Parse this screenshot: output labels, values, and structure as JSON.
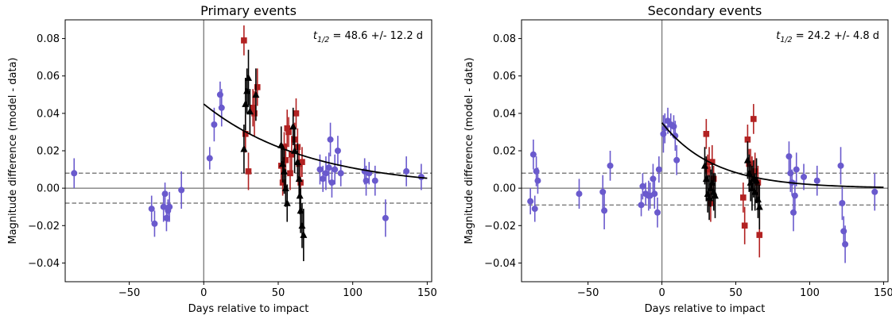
{
  "chart_data": [
    {
      "type": "scatter",
      "title": "Primary events",
      "xlabel": "Days relative to impact",
      "ylabel": "Magnitude difference (model - data)",
      "xlim": [
        -93,
        153
      ],
      "ylim": [
        -0.05,
        0.09
      ],
      "xticks": [
        -50,
        0,
        50,
        100,
        150
      ],
      "yticks": [
        -0.04,
        -0.02,
        0.0,
        0.02,
        0.04,
        0.06,
        0.08
      ],
      "xtick_labels": [
        "−50",
        "0",
        "50",
        "100",
        "150"
      ],
      "ytick_labels": [
        "−0.04",
        "−0.02",
        "0.00",
        "0.02",
        "0.04",
        "0.06",
        "0.08"
      ],
      "annotation": {
        "var": "t",
        "sub": "1/2",
        "text": " = 48.6 +/- 12.2 d"
      },
      "zero_line": 0.0,
      "dashed_lines": [
        0.008,
        -0.008
      ],
      "impact_line_x": 0,
      "fit_curve": {
        "A": 0.045,
        "half_life": 48.6,
        "x_start": 0,
        "x_end": 150
      },
      "series": [
        {
          "marker": "circle",
          "color": "#6a5acd",
          "points": [
            [
              -87,
              0.008,
              0.008
            ],
            [
              -35,
              -0.011,
              0.007
            ],
            [
              -33,
              -0.019,
              0.007
            ],
            [
              -27,
              -0.01,
              0.008
            ],
            [
              -26,
              -0.003,
              0.006
            ],
            [
              -25,
              -0.016,
              0.007
            ],
            [
              -24,
              -0.012,
              0.006
            ],
            [
              -23,
              -0.01,
              0.008
            ],
            [
              -15,
              -0.001,
              0.01
            ],
            [
              4,
              0.016,
              0.006
            ],
            [
              7,
              0.034,
              0.009
            ],
            [
              11,
              0.05,
              0.007
            ],
            [
              12,
              0.043,
              0.01
            ],
            [
              78,
              0.01,
              0.008
            ],
            [
              80,
              0.005,
              0.007
            ],
            [
              82,
              0.008,
              0.009
            ],
            [
              84,
              0.011,
              0.008
            ],
            [
              85,
              0.026,
              0.009
            ],
            [
              86,
              0.003,
              0.008
            ],
            [
              88,
              0.01,
              0.008
            ],
            [
              90,
              0.02,
              0.008
            ],
            [
              92,
              0.008,
              0.007
            ],
            [
              108,
              0.009,
              0.007
            ],
            [
              109,
              0.004,
              0.008
            ],
            [
              111,
              0.008,
              0.006
            ],
            [
              115,
              0.004,
              0.008
            ],
            [
              122,
              -0.016,
              0.01
            ],
            [
              136,
              0.009,
              0.008
            ],
            [
              146,
              0.006,
              0.007
            ]
          ]
        },
        {
          "marker": "square",
          "color": "#b22222",
          "points": [
            [
              27,
              0.079,
              0.008
            ],
            [
              28,
              0.029,
              0.01
            ],
            [
              30,
              0.009,
              0.01
            ],
            [
              33,
              0.043,
              0.01
            ],
            [
              34,
              0.04,
              0.012
            ],
            [
              36,
              0.054,
              0.01
            ],
            [
              52,
              0.012,
              0.008
            ],
            [
              53,
              0.003,
              0.007
            ],
            [
              54,
              0.022,
              0.008
            ],
            [
              55,
              0.015,
              0.009
            ],
            [
              56,
              0.032,
              0.01
            ],
            [
              57,
              0.03,
              0.008
            ],
            [
              58,
              0.008,
              0.009
            ],
            [
              59,
              0.018,
              0.01
            ],
            [
              61,
              0.026,
              0.009
            ],
            [
              62,
              0.04,
              0.008
            ],
            [
              63,
              0.022,
              0.01
            ],
            [
              64,
              0.013,
              0.008
            ],
            [
              65,
              0.003,
              0.009
            ],
            [
              66,
              0.014,
              0.008
            ]
          ]
        },
        {
          "marker": "triangle",
          "color": "#000000",
          "points": [
            [
              27,
              0.021,
              0.013
            ],
            [
              28,
              0.045,
              0.014
            ],
            [
              29,
              0.052,
              0.012
            ],
            [
              30,
              0.059,
              0.015
            ],
            [
              31,
              0.041,
              0.012
            ],
            [
              35,
              0.05,
              0.014
            ],
            [
              52,
              0.023,
              0.01
            ],
            [
              53,
              0.013,
              0.01
            ],
            [
              54,
              0.009,
              0.012
            ],
            [
              55,
              0.0,
              0.01
            ],
            [
              56,
              -0.008,
              0.01
            ],
            [
              60,
              0.033,
              0.01
            ],
            [
              61,
              0.02,
              0.012
            ],
            [
              63,
              0.014,
              0.01
            ],
            [
              64,
              0.005,
              0.01
            ],
            [
              64.5,
              -0.004,
              0.01
            ],
            [
              65,
              -0.012,
              0.012
            ],
            [
              66,
              -0.02,
              0.012
            ],
            [
              67,
              -0.025,
              0.014
            ]
          ]
        }
      ]
    },
    {
      "type": "scatter",
      "title": "Secondary events",
      "xlabel": "Days relative to impact",
      "ylabel": "Magnitude difference (model - data)",
      "xlim": [
        -95,
        153
      ],
      "ylim": [
        -0.05,
        0.09
      ],
      "xticks": [
        -50,
        0,
        50,
        100,
        150
      ],
      "yticks": [
        -0.04,
        -0.02,
        0.0,
        0.02,
        0.04,
        0.06,
        0.08
      ],
      "xtick_labels": [
        "−50",
        "0",
        "50",
        "100",
        "150"
      ],
      "ytick_labels": [
        "−0.04",
        "−0.02",
        "0.00",
        "0.02",
        "0.04",
        "0.06",
        "0.08"
      ],
      "annotation": {
        "var": "t",
        "sub": "1/2",
        "text": " = 24.2 +/- 4.8 d"
      },
      "zero_line": 0.0,
      "dashed_lines": [
        0.008,
        -0.009
      ],
      "impact_line_x": 0,
      "fit_curve": {
        "A": 0.035,
        "half_life": 24.2,
        "x_start": 0,
        "x_end": 150
      },
      "series": [
        {
          "marker": "circle",
          "color": "#6a5acd",
          "points": [
            [
              -89,
              -0.007,
              0.007
            ],
            [
              -87,
              0.018,
              0.008
            ],
            [
              -86,
              -0.011,
              0.007
            ],
            [
              -85,
              0.009,
              0.008
            ],
            [
              -84,
              0.004,
              0.007
            ],
            [
              -56,
              -0.003,
              0.008
            ],
            [
              -40,
              -0.002,
              0.009
            ],
            [
              -39,
              -0.012,
              0.01
            ],
            [
              -35,
              0.012,
              0.008
            ],
            [
              -14,
              -0.009,
              0.006
            ],
            [
              -13,
              0.001,
              0.007
            ],
            [
              -11,
              -0.003,
              0.006
            ],
            [
              -9,
              -0.004,
              0.008
            ],
            [
              -8,
              -0.004,
              0.007
            ],
            [
              -6,
              0.005,
              0.008
            ],
            [
              -5,
              -0.003,
              0.008
            ],
            [
              -3,
              -0.013,
              0.008
            ],
            [
              -2,
              0.01,
              0.007
            ],
            [
              1,
              0.029,
              0.01
            ],
            [
              2,
              0.032,
              0.008
            ],
            [
              4,
              0.036,
              0.007
            ],
            [
              6,
              0.034,
              0.006
            ],
            [
              8,
              0.033,
              0.006
            ],
            [
              9,
              0.028,
              0.008
            ],
            [
              10,
              0.015,
              0.008
            ],
            [
              86,
              0.017,
              0.008
            ],
            [
              87,
              0.008,
              0.01
            ],
            [
              88,
              0.003,
              0.007
            ],
            [
              89,
              -0.013,
              0.01
            ],
            [
              90,
              -0.004,
              0.008
            ],
            [
              91,
              0.01,
              0.009
            ],
            [
              96,
              0.006,
              0.007
            ],
            [
              105,
              0.004,
              0.008
            ],
            [
              121,
              0.012,
              0.01
            ],
            [
              122,
              -0.008,
              0.009
            ],
            [
              123,
              -0.023,
              0.008
            ],
            [
              124,
              -0.03,
              0.01
            ],
            [
              144,
              -0.002,
              0.01
            ]
          ]
        },
        {
          "marker": "square",
          "color": "#b22222",
          "points": [
            [
              30,
              0.029,
              0.008
            ],
            [
              31,
              0.01,
              0.008
            ],
            [
              32,
              0.014,
              0.008
            ],
            [
              33,
              -0.008,
              0.01
            ],
            [
              34,
              0.014,
              0.009
            ],
            [
              35,
              0.005,
              0.007
            ],
            [
              55,
              -0.005,
              0.008
            ],
            [
              56,
              -0.02,
              0.01
            ],
            [
              58,
              0.026,
              0.008
            ],
            [
              59,
              0.013,
              0.008
            ],
            [
              60,
              0.013,
              0.008
            ],
            [
              61,
              0.008,
              0.009
            ],
            [
              62,
              0.037,
              0.008
            ],
            [
              63,
              0.009,
              0.01
            ],
            [
              65,
              0.003,
              0.009
            ],
            [
              66,
              -0.025,
              0.012
            ]
          ]
        },
        {
          "marker": "triangle",
          "color": "#000000",
          "points": [
            [
              29,
              0.012,
              0.01
            ],
            [
              30,
              0.005,
              0.012
            ],
            [
              31,
              -0.003,
              0.01
            ],
            [
              32,
              -0.005,
              0.012
            ],
            [
              33,
              0.0,
              0.01
            ],
            [
              34,
              0.003,
              0.01
            ],
            [
              35,
              -0.002,
              0.01
            ],
            [
              36,
              -0.004,
              0.012
            ],
            [
              58,
              0.015,
              0.01
            ],
            [
              59,
              0.008,
              0.01
            ],
            [
              60,
              0.003,
              0.01
            ],
            [
              61,
              0.0,
              0.012
            ],
            [
              62,
              0.005,
              0.01
            ],
            [
              63,
              -0.002,
              0.01
            ],
            [
              64,
              0.004,
              0.012
            ],
            [
              65,
              -0.006,
              0.01
            ],
            [
              66,
              -0.01,
              0.012
            ]
          ]
        }
      ]
    }
  ]
}
